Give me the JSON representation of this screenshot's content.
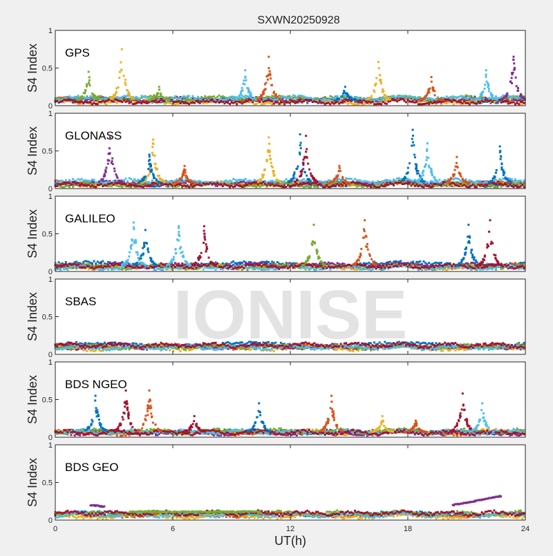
{
  "chart_data": {
    "type": "scatter",
    "title": "SXWN20250928",
    "xlabel": "UT(h)",
    "watermark": "IONISE",
    "xlim": [
      0,
      24
    ],
    "xticks": [
      "0",
      "6",
      "12",
      "18",
      "24"
    ],
    "yticks": [
      "0",
      "0.5",
      "1"
    ],
    "grid": false,
    "colors": [
      "#0072BD",
      "#D95319",
      "#EDB120",
      "#7E2F8E",
      "#77AC30",
      "#4DBEEE",
      "#A2142F"
    ],
    "panels": [
      {
        "label": "GPS",
        "ylabel": "S4 Index",
        "ylim": [
          0,
          1
        ],
        "baseline": [
          0.07,
          0.08,
          0.05,
          0.08,
          0.1,
          0.1,
          0.05
        ],
        "peaks": [
          {
            "t": 1.7,
            "s4": 0.45,
            "c": 4
          },
          {
            "t": 3.4,
            "s4": 0.75,
            "c": 2
          },
          {
            "t": 5.3,
            "s4": 0.25,
            "c": 4
          },
          {
            "t": 9.7,
            "s4": 0.47,
            "c": 5
          },
          {
            "t": 10.9,
            "s4": 0.65,
            "c": 1
          },
          {
            "t": 14.8,
            "s4": 0.25,
            "c": 0
          },
          {
            "t": 16.5,
            "s4": 0.58,
            "c": 2
          },
          {
            "t": 19.2,
            "s4": 0.38,
            "c": 1
          },
          {
            "t": 22.0,
            "s4": 0.47,
            "c": 5
          },
          {
            "t": 23.4,
            "s4": 0.65,
            "c": 3
          }
        ]
      },
      {
        "label": "GLONASS",
        "ylabel": "S4 Index",
        "ylim": [
          0,
          1
        ],
        "baseline": [
          0.06,
          0.07,
          0.06,
          0.07,
          0.05,
          0.1,
          0.05
        ],
        "peaks": [
          {
            "t": 2.8,
            "s4": 0.68,
            "c": 3
          },
          {
            "t": 5.0,
            "s4": 0.65,
            "c": 2
          },
          {
            "t": 4.8,
            "s4": 0.45,
            "c": 0
          },
          {
            "t": 6.6,
            "s4": 0.3,
            "c": 1
          },
          {
            "t": 10.9,
            "s4": 0.68,
            "c": 2
          },
          {
            "t": 12.5,
            "s4": 0.72,
            "c": 0
          },
          {
            "t": 12.8,
            "s4": 0.7,
            "c": 6
          },
          {
            "t": 14.5,
            "s4": 0.3,
            "c": 1
          },
          {
            "t": 18.25,
            "s4": 0.78,
            "c": 0
          },
          {
            "t": 19.0,
            "s4": 0.6,
            "c": 5
          },
          {
            "t": 20.5,
            "s4": 0.42,
            "c": 1
          },
          {
            "t": 22.7,
            "s4": 0.56,
            "c": 0
          }
        ]
      },
      {
        "label": "GALILEO",
        "ylabel": "S4 Index",
        "ylim": [
          0,
          1
        ],
        "baseline": [
          0.1,
          0.07,
          0.06,
          0.08,
          0.06,
          0.05,
          0.07
        ],
        "peaks": [
          {
            "t": 4.0,
            "s4": 0.65,
            "c": 5
          },
          {
            "t": 4.6,
            "s4": 0.55,
            "c": 0
          },
          {
            "t": 6.3,
            "s4": 0.6,
            "c": 5
          },
          {
            "t": 7.6,
            "s4": 0.6,
            "c": 6
          },
          {
            "t": 13.2,
            "s4": 0.62,
            "c": 4
          },
          {
            "t": 15.8,
            "s4": 0.68,
            "c": 1
          },
          {
            "t": 21.1,
            "s4": 0.62,
            "c": 0
          },
          {
            "t": 22.2,
            "s4": 0.68,
            "c": 6
          }
        ]
      },
      {
        "label": "SBAS",
        "ylabel": "S4 Index",
        "ylim": [
          0,
          1
        ],
        "baseline": [
          0.13,
          0.1,
          0.08,
          0.1,
          0.1,
          0.09,
          0.12
        ],
        "peaks": []
      },
      {
        "label": "BDS NGEO",
        "ylabel": "S4 Index",
        "ylim": [
          0,
          1
        ],
        "baseline": [
          0.07,
          0.06,
          0.07,
          0.06,
          0.08,
          0.07,
          0.06
        ],
        "peaks": [
          {
            "t": 2.05,
            "s4": 0.55,
            "c": 0
          },
          {
            "t": 3.6,
            "s4": 0.62,
            "c": 6
          },
          {
            "t": 4.8,
            "s4": 0.62,
            "c": 1
          },
          {
            "t": 7.1,
            "s4": 0.28,
            "c": 6
          },
          {
            "t": 10.4,
            "s4": 0.45,
            "c": 0
          },
          {
            "t": 14.1,
            "s4": 0.55,
            "c": 1
          },
          {
            "t": 16.7,
            "s4": 0.28,
            "c": 2
          },
          {
            "t": 18.4,
            "s4": 0.22,
            "c": 1
          },
          {
            "t": 20.8,
            "s4": 0.58,
            "c": 6
          },
          {
            "t": 21.8,
            "s4": 0.45,
            "c": 5
          }
        ]
      },
      {
        "label": "BDS GEO",
        "ylabel": "S4 Index",
        "ylim": [
          0,
          1
        ],
        "baseline": [
          0.08,
          0.07,
          0.05,
          0,
          0.09,
          0.07,
          0.09
        ],
        "peaks": [],
        "segments": [
          {
            "c": 3,
            "t0": 1.8,
            "t1": 2.5,
            "s0": 0.2,
            "s1": 0.18
          },
          {
            "c": 4,
            "t0": 3.8,
            "t1": 10.5,
            "s0": 0.11,
            "s1": 0.11
          },
          {
            "c": 3,
            "t0": 20.3,
            "t1": 22.8,
            "s0": 0.2,
            "s1": 0.32
          }
        ]
      }
    ]
  }
}
